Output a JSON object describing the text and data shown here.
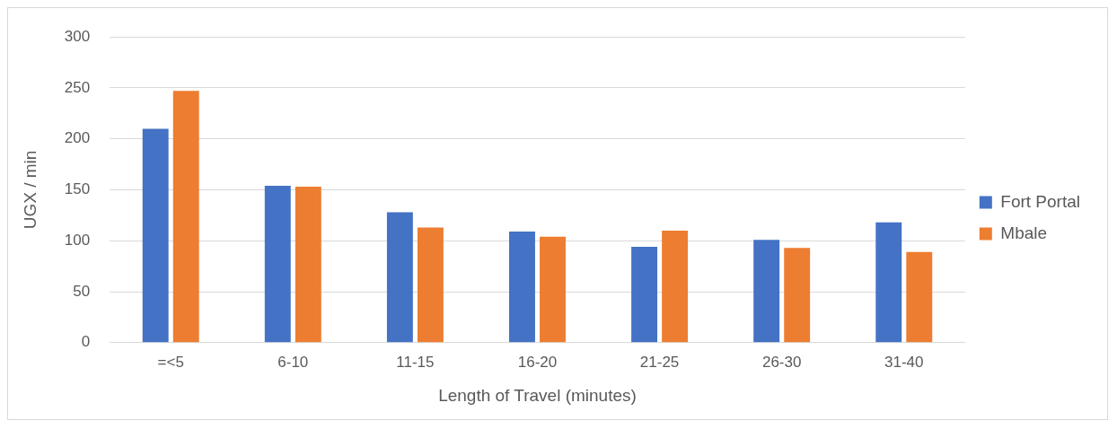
{
  "chart_data": {
    "type": "bar",
    "xlabel": "Length of Travel (minutes)",
    "ylabel": "UGX / min",
    "categories": [
      "=<5",
      "6-10",
      "11-15",
      "16-20",
      "21-25",
      "26-30",
      "31-40"
    ],
    "series": [
      {
        "name": "Fort Portal",
        "color": "#4472c4",
        "values": [
          210,
          154,
          128,
          109,
          94,
          101,
          118
        ]
      },
      {
        "name": "Mbale",
        "color": "#ed7d31",
        "values": [
          247,
          153,
          113,
          104,
          110,
          93,
          89
        ]
      }
    ],
    "ylim": [
      0,
      300
    ],
    "yticks": [
      0,
      50,
      100,
      150,
      200,
      250,
      300
    ],
    "grid": "y",
    "legend": "right"
  }
}
